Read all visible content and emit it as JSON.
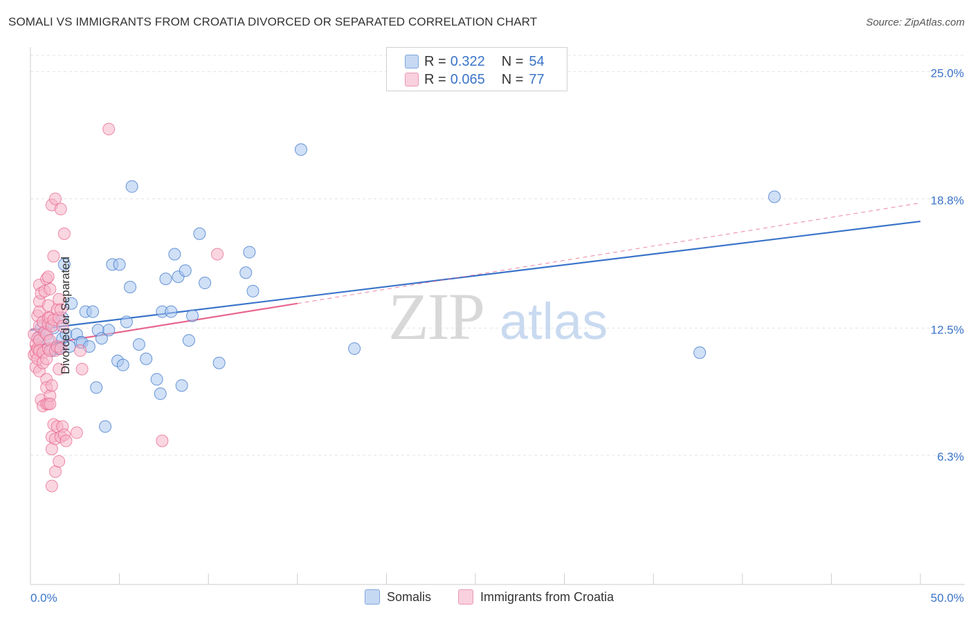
{
  "title": "SOMALI VS IMMIGRANTS FROM CROATIA DIVORCED OR SEPARATED CORRELATION CHART",
  "source": "Source: ZipAtlas.com",
  "watermark": {
    "zip": "ZIP",
    "atlas": "atlas"
  },
  "legend_top": {
    "rows": [
      {
        "r_label": "R =",
        "r_value": "0.322",
        "n_label": "N =",
        "n_value": "54",
        "color": "#a9c7ef"
      },
      {
        "r_label": "R =",
        "r_value": "0.065",
        "n_label": "N =",
        "n_value": "77",
        "color": "#f6b5c9"
      }
    ]
  },
  "chart_data": {
    "type": "scatter",
    "ylabel": "Divorced or Separated",
    "x_tick_labels": [
      "0.0%",
      "50.0%"
    ],
    "y_tick_labels": [
      "6.3%",
      "12.5%",
      "18.8%",
      "25.0%"
    ],
    "y_ticks": [
      6.3,
      12.5,
      18.8,
      25.0
    ],
    "xlim": [
      0,
      50
    ],
    "ylim": [
      0,
      26.2
    ],
    "grid": true,
    "legend_position": "bottom",
    "series": [
      {
        "name": "Somalis",
        "color": "#3a74c9",
        "fill": "#a9c7ef",
        "trend": {
          "x0": 0,
          "y0": 12.4,
          "x1": 50,
          "y1": 17.7,
          "solid_until": 50
        },
        "points": [
          [
            0.5,
            12.1
          ],
          [
            0.6,
            12.5
          ],
          [
            0.8,
            12.3
          ],
          [
            1.0,
            11.9
          ],
          [
            1.2,
            11.4
          ],
          [
            1.3,
            12.5
          ],
          [
            1.5,
            11.5
          ],
          [
            1.6,
            11.5
          ],
          [
            1.8,
            12.0
          ],
          [
            1.8,
            13.0
          ],
          [
            1.9,
            15.6
          ],
          [
            2.0,
            12.2
          ],
          [
            2.2,
            11.6
          ],
          [
            2.3,
            13.7
          ],
          [
            2.6,
            12.2
          ],
          [
            2.8,
            11.8
          ],
          [
            2.9,
            11.8
          ],
          [
            3.1,
            13.3
          ],
          [
            3.3,
            11.6
          ],
          [
            3.5,
            13.3
          ],
          [
            3.7,
            9.6
          ],
          [
            3.8,
            12.4
          ],
          [
            4.0,
            12.0
          ],
          [
            4.2,
            7.7
          ],
          [
            4.4,
            12.4
          ],
          [
            4.6,
            15.6
          ],
          [
            4.9,
            10.9
          ],
          [
            5.0,
            15.6
          ],
          [
            5.2,
            10.7
          ],
          [
            5.4,
            12.8
          ],
          [
            5.6,
            14.5
          ],
          [
            5.7,
            19.4
          ],
          [
            6.1,
            11.7
          ],
          [
            6.5,
            11.0
          ],
          [
            7.1,
            10.0
          ],
          [
            7.3,
            9.3
          ],
          [
            7.4,
            13.3
          ],
          [
            7.6,
            14.9
          ],
          [
            7.9,
            13.3
          ],
          [
            8.1,
            16.1
          ],
          [
            8.3,
            15.0
          ],
          [
            8.5,
            9.7
          ],
          [
            8.7,
            15.3
          ],
          [
            8.9,
            11.9
          ],
          [
            9.1,
            13.1
          ],
          [
            9.5,
            17.1
          ],
          [
            9.8,
            14.7
          ],
          [
            10.6,
            10.8
          ],
          [
            12.1,
            15.2
          ],
          [
            12.3,
            16.2
          ],
          [
            12.5,
            14.3
          ],
          [
            15.2,
            21.2
          ],
          [
            18.2,
            11.5
          ],
          [
            37.6,
            11.3
          ],
          [
            41.8,
            18.9
          ]
        ]
      },
      {
        "name": "Immigrants from Croatia",
        "color": "#e8668e",
        "fill": "#f6b5c9",
        "trend": {
          "x0": 0,
          "y0": 11.6,
          "x1": 50,
          "y1": 18.6,
          "solid_until": 15
        },
        "points": [
          [
            0.2,
            12.2
          ],
          [
            0.2,
            11.2
          ],
          [
            0.3,
            11.7
          ],
          [
            0.3,
            11.3
          ],
          [
            0.3,
            10.6
          ],
          [
            0.4,
            13.1
          ],
          [
            0.4,
            12.0
          ],
          [
            0.4,
            11.5
          ],
          [
            0.4,
            11.0
          ],
          [
            0.5,
            14.6
          ],
          [
            0.5,
            13.8
          ],
          [
            0.5,
            13.3
          ],
          [
            0.5,
            12.6
          ],
          [
            0.5,
            11.9
          ],
          [
            0.5,
            11.4
          ],
          [
            0.5,
            10.4
          ],
          [
            0.6,
            9.0
          ],
          [
            0.6,
            14.2
          ],
          [
            0.7,
            12.8
          ],
          [
            0.7,
            11.3
          ],
          [
            0.7,
            10.8
          ],
          [
            0.7,
            8.7
          ],
          [
            0.8,
            14.3
          ],
          [
            0.8,
            12.3
          ],
          [
            0.9,
            14.9
          ],
          [
            0.9,
            12.2
          ],
          [
            0.9,
            11.0
          ],
          [
            0.9,
            10.0
          ],
          [
            0.9,
            9.6
          ],
          [
            0.9,
            8.8
          ],
          [
            1.0,
            15.0
          ],
          [
            1.0,
            13.6
          ],
          [
            1.0,
            13.0
          ],
          [
            1.0,
            12.7
          ],
          [
            1.0,
            11.5
          ],
          [
            1.0,
            8.8
          ],
          [
            1.1,
            14.4
          ],
          [
            1.1,
            13.0
          ],
          [
            1.1,
            11.9
          ],
          [
            1.1,
            11.4
          ],
          [
            1.1,
            9.2
          ],
          [
            1.1,
            8.8
          ],
          [
            1.2,
            18.5
          ],
          [
            1.2,
            12.6
          ],
          [
            1.2,
            9.7
          ],
          [
            1.2,
            7.2
          ],
          [
            1.2,
            6.6
          ],
          [
            1.2,
            4.8
          ],
          [
            1.3,
            16.0
          ],
          [
            1.3,
            12.9
          ],
          [
            1.3,
            7.8
          ],
          [
            1.4,
            18.8
          ],
          [
            1.4,
            11.4
          ],
          [
            1.4,
            7.1
          ],
          [
            1.4,
            5.5
          ],
          [
            1.5,
            13.4
          ],
          [
            1.5,
            11.6
          ],
          [
            1.5,
            7.7
          ],
          [
            1.6,
            13.9
          ],
          [
            1.6,
            13.0
          ],
          [
            1.6,
            10.5
          ],
          [
            1.6,
            6.0
          ],
          [
            1.7,
            13.4
          ],
          [
            1.7,
            11.5
          ],
          [
            1.7,
            7.2
          ],
          [
            1.7,
            18.3
          ],
          [
            1.8,
            12.6
          ],
          [
            1.8,
            7.7
          ],
          [
            1.9,
            17.1
          ],
          [
            1.9,
            7.3
          ],
          [
            2.0,
            7.0
          ],
          [
            2.6,
            7.4
          ],
          [
            2.8,
            11.4
          ],
          [
            2.9,
            10.5
          ],
          [
            4.4,
            22.2
          ],
          [
            7.4,
            7.0
          ],
          [
            10.5,
            16.1
          ]
        ]
      }
    ]
  },
  "bottom_legend": [
    {
      "label": "Somalis",
      "color": "#a9c7ef",
      "border": "#7ea6dc"
    },
    {
      "label": "Immigrants from Croatia",
      "color": "#f6c5d4",
      "border": "#e89ab4"
    }
  ]
}
